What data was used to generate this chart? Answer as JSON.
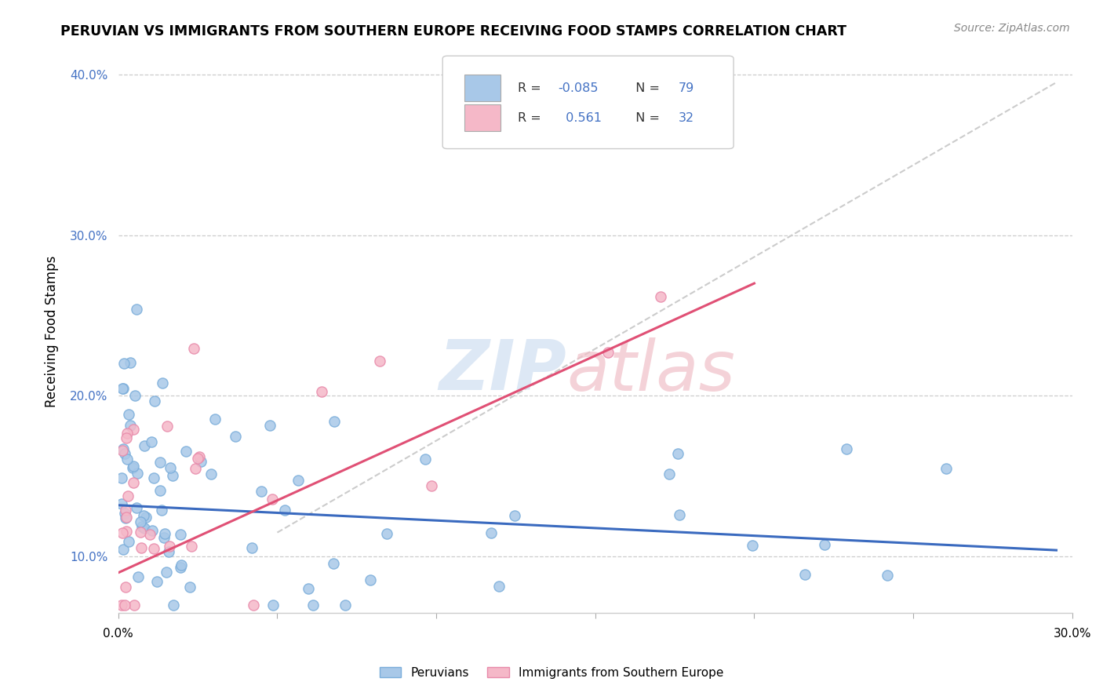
{
  "title": "PERUVIAN VS IMMIGRANTS FROM SOUTHERN EUROPE RECEIVING FOOD STAMPS CORRELATION CHART",
  "source": "Source: ZipAtlas.com",
  "ylabel": "Receiving Food Stamps",
  "ylim": [
    0.065,
    0.415
  ],
  "xlim": [
    0.0,
    0.3
  ],
  "yticks": [
    0.1,
    0.2,
    0.3,
    0.4
  ],
  "ytick_labels": [
    "10.0%",
    "20.0%",
    "30.0%",
    "40.0%"
  ],
  "blue_R": -0.085,
  "blue_N": 79,
  "pink_R": 0.561,
  "pink_N": 32,
  "blue_dot_color": "#a8c8e8",
  "blue_dot_edge": "#7aadda",
  "pink_dot_color": "#f5b8c8",
  "pink_dot_edge": "#e88aaa",
  "blue_line_color": "#3a6abf",
  "pink_line_color": "#e05075",
  "gray_dash_color": "#cccccc",
  "legend_blue_label": "Peruvians",
  "legend_pink_label": "Immigrants from Southern Europe",
  "blue_line_x0": 0.0,
  "blue_line_y0": 0.132,
  "blue_line_x1": 0.295,
  "blue_line_y1": 0.104,
  "pink_line_x0": 0.0,
  "pink_line_y0": 0.09,
  "pink_line_x1": 0.2,
  "pink_line_y1": 0.27,
  "gray_line_x0": 0.05,
  "gray_line_y0": 0.115,
  "gray_line_x1": 0.295,
  "gray_line_y1": 0.395
}
